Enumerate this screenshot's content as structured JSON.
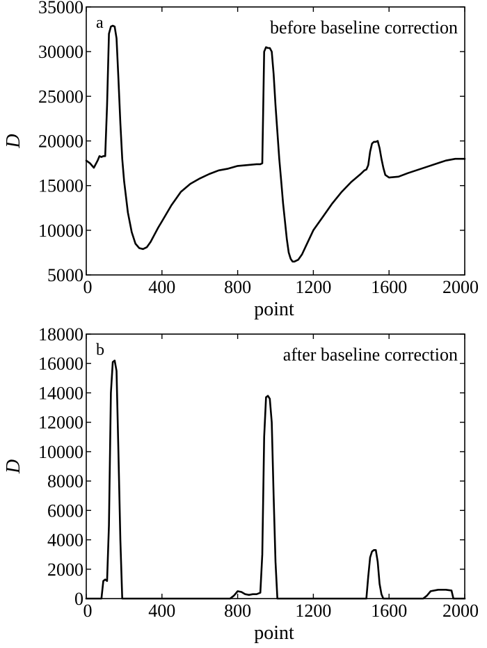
{
  "chart_data": [
    {
      "type": "line",
      "panel_label": "a",
      "annotation": "before baseline correction",
      "xlabel": "point",
      "ylabel": "D",
      "xlim": [
        0,
        2000
      ],
      "ylim": [
        5000,
        35000
      ],
      "x_ticks": [
        0,
        400,
        800,
        1200,
        1600,
        2000
      ],
      "y_ticks": [
        5000,
        10000,
        15000,
        20000,
        25000,
        30000,
        35000
      ],
      "grid": false,
      "series": [
        {
          "x": [
            0,
            20,
            40,
            60,
            70,
            80,
            90,
            100,
            110,
            120,
            130,
            140,
            150,
            160,
            170,
            180,
            190,
            200,
            220,
            240,
            260,
            280,
            300,
            320,
            340,
            360,
            380,
            400,
            450,
            500,
            550,
            600,
            650,
            700,
            750,
            800,
            850,
            900,
            920,
            930,
            940,
            950,
            960,
            970,
            980,
            990,
            1000,
            1010,
            1020,
            1030,
            1040,
            1050,
            1060,
            1070,
            1080,
            1090,
            1100,
            1120,
            1140,
            1160,
            1200,
            1250,
            1300,
            1350,
            1400,
            1450,
            1470,
            1480,
            1490,
            1500,
            1510,
            1520,
            1530,
            1540,
            1550,
            1560,
            1570,
            1580,
            1600,
            1650,
            1700,
            1800,
            1900,
            1950,
            2000
          ],
          "y": [
            17800,
            17500,
            17000,
            17800,
            18300,
            18200,
            18300,
            18300,
            24000,
            32000,
            32800,
            32900,
            32800,
            31500,
            27000,
            22000,
            18000,
            15500,
            12000,
            9800,
            8500,
            8000,
            7900,
            8100,
            8700,
            9500,
            10300,
            11000,
            12800,
            14300,
            15200,
            15800,
            16300,
            16700,
            16900,
            17200,
            17300,
            17400,
            17400,
            17500,
            30000,
            30500,
            30400,
            30400,
            30000,
            27500,
            24000,
            21000,
            18000,
            15500,
            13000,
            11000,
            9000,
            7500,
            6800,
            6500,
            6500,
            6700,
            7300,
            8200,
            10000,
            11500,
            13000,
            14300,
            15400,
            16300,
            16700,
            16800,
            17300,
            18800,
            19700,
            19900,
            19900,
            20000,
            19200,
            18000,
            17000,
            16200,
            15900,
            16000,
            16400,
            17100,
            17800,
            18000,
            18000
          ]
        }
      ]
    },
    {
      "type": "line",
      "panel_label": "b",
      "annotation": "after baseline correction",
      "xlabel": "point",
      "ylabel": "D",
      "xlim": [
        0,
        2000
      ],
      "ylim": [
        0,
        18000
      ],
      "x_ticks": [
        0,
        400,
        800,
        1200,
        1600,
        2000
      ],
      "y_ticks": [
        0,
        2000,
        4000,
        6000,
        8000,
        10000,
        12000,
        14000,
        16000,
        18000
      ],
      "grid": false,
      "series": [
        {
          "x": [
            0,
            80,
            90,
            100,
            110,
            120,
            130,
            140,
            150,
            160,
            170,
            180,
            190,
            200,
            300,
            400,
            500,
            600,
            700,
            760,
            780,
            800,
            820,
            840,
            860,
            880,
            900,
            920,
            930,
            940,
            950,
            960,
            970,
            980,
            990,
            1000,
            1010,
            1020,
            1030,
            1040,
            1100,
            1200,
            1300,
            1400,
            1480,
            1490,
            1500,
            1510,
            1520,
            1530,
            1540,
            1550,
            1560,
            1570,
            1580,
            1600,
            1700,
            1750,
            1780,
            1800,
            1820,
            1860,
            1900,
            1930,
            1940,
            1950,
            2000
          ],
          "y": [
            0,
            0,
            1200,
            1300,
            1200,
            5000,
            14000,
            16100,
            16200,
            15500,
            10000,
            4000,
            0,
            0,
            0,
            0,
            0,
            0,
            0,
            0,
            200,
            500,
            450,
            300,
            250,
            300,
            300,
            400,
            3000,
            11000,
            13700,
            13800,
            13600,
            12000,
            7000,
            2500,
            0,
            0,
            0,
            0,
            0,
            0,
            0,
            0,
            0,
            1500,
            2800,
            3200,
            3300,
            3300,
            2500,
            1000,
            300,
            0,
            0,
            0,
            0,
            0,
            0,
            200,
            500,
            600,
            600,
            550,
            0,
            0,
            0
          ]
        }
      ]
    }
  ]
}
